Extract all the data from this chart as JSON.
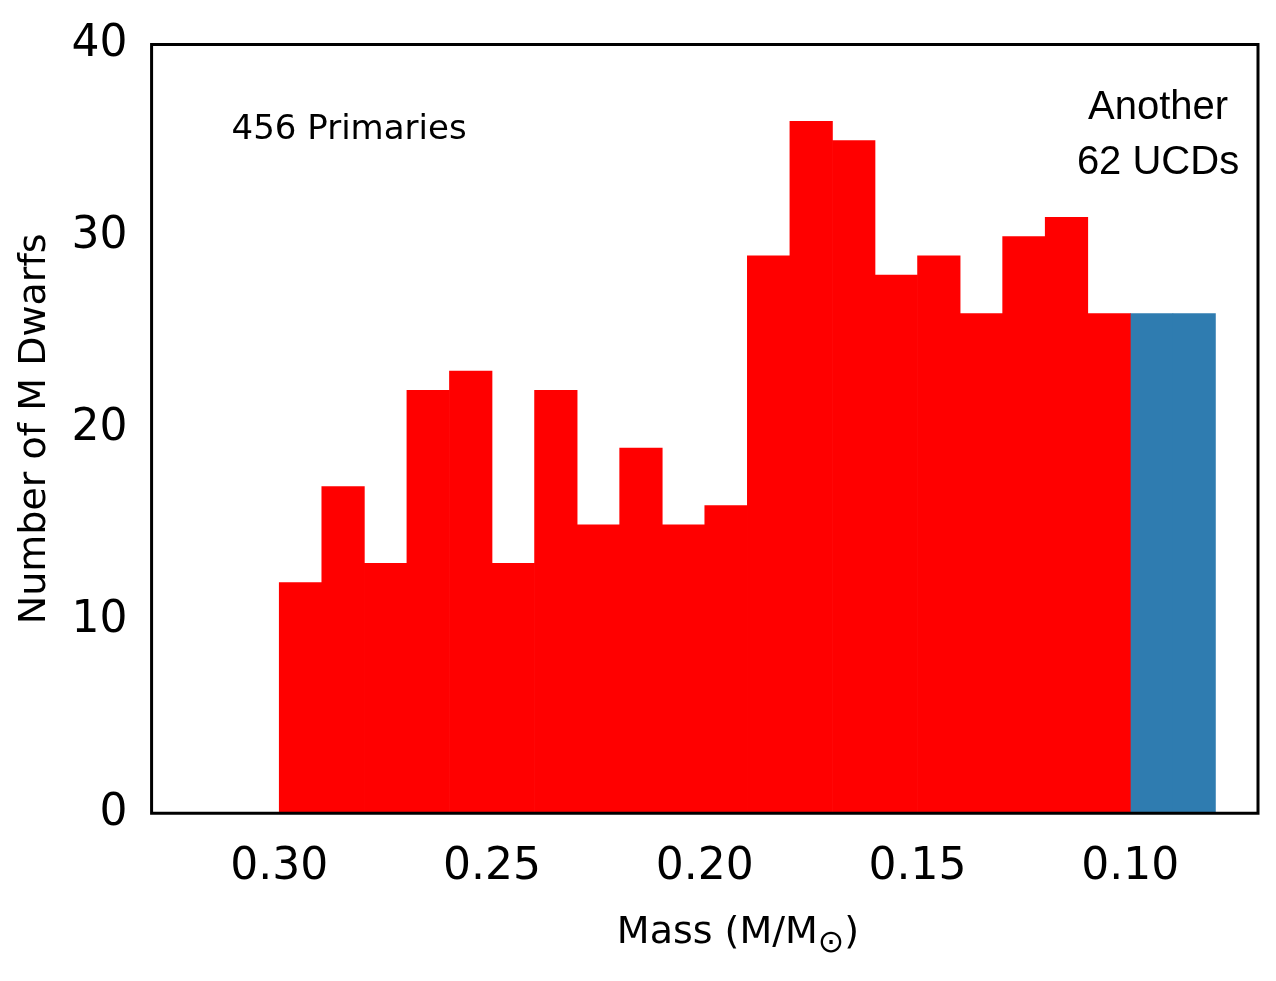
{
  "chart_data": {
    "type": "histogram",
    "xlabel": "Mass (M/M$_{⊙}$)",
    "ylabel": "Number of M Dwarfs",
    "annotations": [
      "456 Primaries",
      "Another\n62 UCDs"
    ],
    "bins": [
      0.3,
      0.29,
      0.28,
      0.27,
      0.26,
      0.25,
      0.24,
      0.23,
      0.22,
      0.21,
      0.2,
      0.19,
      0.18,
      0.17,
      0.16,
      0.15,
      0.14,
      0.13,
      0.12,
      0.11,
      0.1,
      0.09,
      0.08
    ],
    "series": [
      {
        "color": "#ff0000",
        "values": [
          12,
          17,
          13,
          22,
          23,
          13,
          22,
          15,
          19,
          15,
          16,
          29,
          36,
          35,
          28,
          29,
          26,
          30,
          31,
          26,
          null,
          null
        ]
      },
      {
        "color": "#2f7cb0",
        "values": [
          null,
          null,
          null,
          null,
          null,
          null,
          null,
          null,
          null,
          null,
          null,
          null,
          null,
          null,
          null,
          null,
          null,
          null,
          null,
          null,
          26,
          26
        ]
      }
    ],
    "xlim": [
      0.33,
      0.07
    ],
    "xticks": [
      {
        "value": 0.3,
        "label": "0.30"
      },
      {
        "value": 0.25,
        "label": "0.25"
      },
      {
        "value": 0.2,
        "label": "0.20"
      },
      {
        "value": 0.15,
        "label": "0.15"
      },
      {
        "value": 0.1,
        "label": "0.10"
      }
    ],
    "ylim": [
      0,
      40
    ],
    "yticks": [
      0,
      10,
      20,
      30,
      40
    ],
    "grid": false,
    "legend": false
  }
}
